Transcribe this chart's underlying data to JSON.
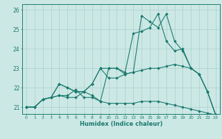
{
  "xlabel": "Humidex (Indice chaleur)",
  "background_color": "#cce8e5",
  "line_color": "#1a7a6e",
  "grid_color": "#aacfcc",
  "xlim": [
    -0.5,
    23.5
  ],
  "ylim": [
    20.65,
    26.3
  ],
  "yticks": [
    21,
    22,
    23,
    24,
    25,
    26
  ],
  "xticks": [
    0,
    1,
    2,
    3,
    4,
    5,
    6,
    7,
    8,
    9,
    10,
    11,
    12,
    13,
    14,
    15,
    16,
    17,
    18,
    19,
    20,
    21,
    22,
    23
  ],
  "series": [
    [
      21.0,
      21.0,
      21.4,
      21.5,
      22.2,
      22.0,
      21.8,
      21.8,
      22.2,
      23.0,
      23.0,
      23.0,
      22.7,
      22.8,
      25.7,
      25.4,
      25.1,
      25.8,
      24.4,
      23.9,
      23.0,
      22.7,
      21.8,
      20.6
    ],
    [
      21.0,
      21.0,
      21.4,
      21.5,
      21.6,
      21.5,
      21.5,
      21.8,
      21.6,
      21.3,
      21.2,
      21.2,
      21.2,
      21.2,
      21.3,
      21.3,
      21.3,
      21.2,
      21.1,
      21.0,
      20.9,
      20.8,
      20.7,
      20.6
    ],
    [
      21.0,
      21.0,
      21.4,
      21.5,
      22.2,
      22.0,
      21.8,
      21.8,
      22.2,
      23.0,
      22.5,
      22.5,
      22.7,
      22.8,
      22.9,
      23.0,
      23.0,
      23.1,
      23.2,
      23.1,
      23.0,
      22.7,
      21.8,
      20.6
    ],
    [
      21.0,
      21.0,
      21.4,
      21.5,
      21.6,
      21.6,
      21.9,
      21.5,
      21.5,
      21.3,
      23.0,
      23.0,
      22.8,
      24.8,
      24.9,
      25.1,
      25.8,
      24.4,
      23.9,
      24.0,
      23.0,
      22.7,
      21.8,
      20.6
    ]
  ]
}
